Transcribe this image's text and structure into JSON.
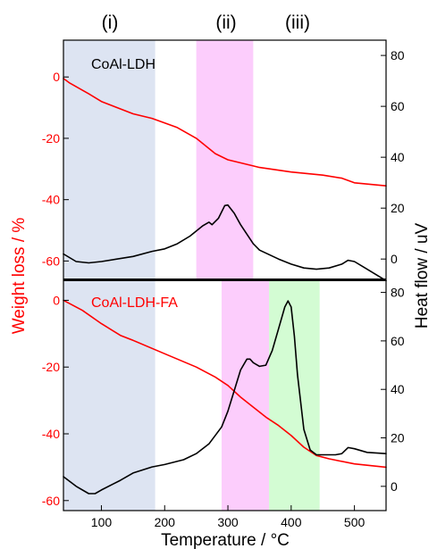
{
  "region_labels": [
    "(i)",
    "(ii)",
    "(iii)"
  ],
  "colors": {
    "weight": "#ff0000",
    "heat": "#000000",
    "region_i": "#dde4f2",
    "region_ii": "#fccdfc",
    "region_iii": "#d3fcd3"
  },
  "axes": {
    "xlabel": "Temperature / °C",
    "ylabel_left": "Weight loss / %",
    "ylabel_right": "Heat flow / uV",
    "x_range": [
      40,
      550
    ],
    "x_ticks": [
      100,
      200,
      300,
      400,
      500
    ],
    "weight_ticks": [
      0,
      -20,
      -40,
      -60
    ],
    "heat_ticks": [
      0,
      20,
      40,
      60,
      80
    ]
  },
  "chart_data": [
    {
      "type": "line",
      "panel": "top",
      "label": "CoAl-LDH",
      "weight_ylim": [
        -66,
        12
      ],
      "heat_ylim": [
        -8,
        86
      ],
      "regions": [
        {
          "label": "(i)",
          "from": 40,
          "to": 185,
          "color": "#dde4f2"
        },
        {
          "label": "(ii)",
          "from": 250,
          "to": 340,
          "color": "#fccdfc"
        }
      ],
      "series": [
        {
          "axis": "left",
          "color": "#ff0000",
          "x": [
            40,
            50,
            80,
            100,
            150,
            180,
            200,
            220,
            250,
            280,
            300,
            340,
            350,
            400,
            450,
            480,
            500,
            550
          ],
          "y": [
            -0.5,
            -2,
            -5.5,
            -8,
            -12,
            -13.5,
            -15,
            -16.5,
            -20,
            -25,
            -27,
            -29,
            -29.5,
            -31,
            -32,
            -33,
            -34.5,
            -35.5
          ]
        },
        {
          "axis": "right",
          "color": "#000000",
          "x": [
            40,
            60,
            80,
            100,
            150,
            180,
            200,
            220,
            240,
            260,
            270,
            275,
            285,
            290,
            295,
            300,
            310,
            320,
            340,
            350,
            380,
            400,
            420,
            440,
            460,
            480,
            490,
            500,
            520,
            550
          ],
          "y": [
            2,
            -1,
            -1.5,
            -1,
            1,
            3,
            4,
            6,
            9,
            13,
            14.5,
            13.5,
            16,
            18.5,
            21,
            21.2,
            18,
            13.5,
            6,
            3.5,
            0,
            -2,
            -3.5,
            -4,
            -3.5,
            -2,
            -0.5,
            -1,
            -4,
            -8.5
          ]
        }
      ]
    },
    {
      "type": "line",
      "panel": "bottom",
      "label": "CoAl-LDH-FA",
      "weight_ylim": [
        -63,
        6
      ],
      "heat_ylim": [
        -10,
        85
      ],
      "regions": [
        {
          "label": "(i)",
          "from": 40,
          "to": 185,
          "color": "#dde4f2"
        },
        {
          "label": "(ii)",
          "from": 290,
          "to": 365,
          "color": "#fccdfc"
        },
        {
          "label": "(iii)",
          "from": 365,
          "to": 445,
          "color": "#d3fcd3"
        }
      ],
      "series": [
        {
          "axis": "left",
          "color": "#ff0000",
          "x": [
            40,
            50,
            70,
            100,
            130,
            150,
            200,
            250,
            280,
            300,
            320,
            340,
            360,
            380,
            400,
            420,
            440,
            460,
            500,
            550
          ],
          "y": [
            0,
            -1,
            -3,
            -7,
            -10.5,
            -12,
            -16,
            -20,
            -23,
            -25.5,
            -29,
            -32,
            -35,
            -37.5,
            -40.5,
            -44,
            -46.5,
            -47.5,
            -49,
            -50
          ]
        },
        {
          "axis": "right",
          "color": "#000000",
          "x": [
            40,
            60,
            80,
            90,
            100,
            130,
            150,
            180,
            200,
            230,
            250,
            270,
            290,
            300,
            310,
            320,
            330,
            335,
            340,
            350,
            360,
            370,
            380,
            390,
            395,
            400,
            405,
            410,
            420,
            430,
            440,
            450,
            470,
            480,
            490,
            500,
            520,
            550
          ],
          "y": [
            4,
            0,
            -3,
            -3,
            -1.5,
            2.5,
            5.5,
            8,
            9,
            11,
            13.5,
            17.5,
            24.5,
            31,
            39.5,
            48,
            52.5,
            52.5,
            51,
            49.5,
            50,
            56,
            65,
            74,
            76.5,
            74,
            62,
            46,
            23.5,
            15,
            13,
            13,
            13,
            13.5,
            16,
            15.5,
            14,
            13.5
          ]
        }
      ]
    }
  ]
}
